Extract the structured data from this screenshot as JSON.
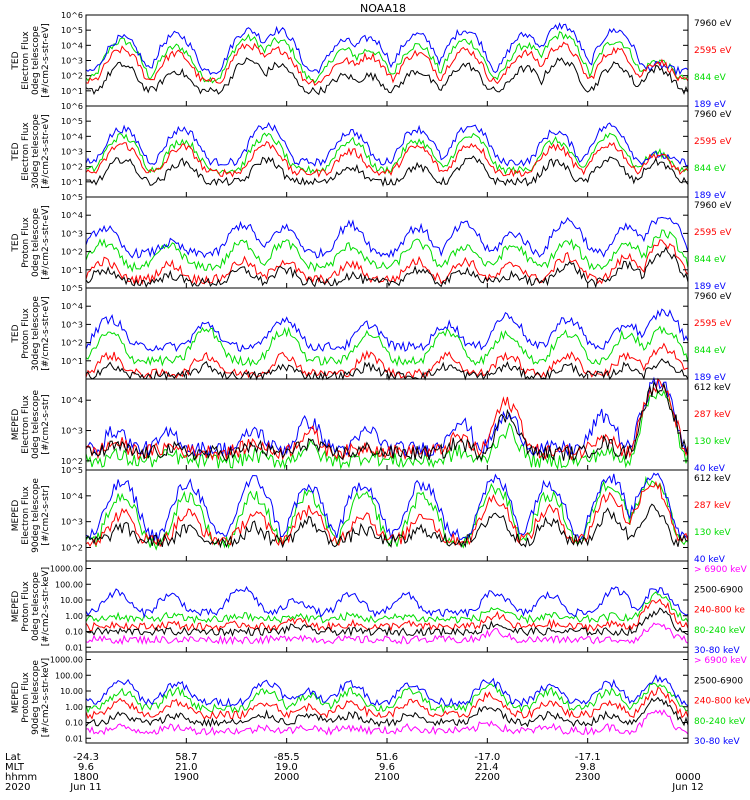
{
  "title": "NOAA18",
  "colors": {
    "blue": "#0000ff",
    "red": "#ff0000",
    "green": "#00dd00",
    "black": "#000000",
    "magenta": "#ff00ff"
  },
  "chart_data": [
    {
      "type": "line",
      "ylabel": [
        "TED",
        "Electron Flux",
        "0deg telescope",
        "[#/cm2-s-str-eV]"
      ],
      "yticks": [
        "10^1",
        "10^2",
        "10^3",
        "10^4",
        "10^5",
        "10^6"
      ],
      "legend": [
        {
          "text": "7960 eV",
          "color": "black"
        },
        {
          "text": "2595 eV",
          "color": "red"
        },
        {
          "text": "844 eV",
          "color": "green"
        },
        {
          "text": "189 eV",
          "color": "blue"
        }
      ],
      "log_scale": true,
      "ylim": [
        1,
        1000000
      ],
      "baseline": {
        "blue": 200,
        "green": 60,
        "red": 40,
        "black": 10
      },
      "peaks": [
        {
          "x": 0.06,
          "blue": 30000,
          "green": 20000,
          "red": 5000,
          "black": 500
        },
        {
          "x": 0.15,
          "blue": 50000,
          "green": 8000,
          "red": 3000,
          "black": 200
        },
        {
          "x": 0.27,
          "blue": 100000,
          "green": 30000,
          "red": 10000,
          "black": 1000
        },
        {
          "x": 0.32,
          "blue": 100000,
          "green": 20000,
          "red": 5000,
          "black": 500
        },
        {
          "x": 0.43,
          "blue": 20000,
          "green": 5000,
          "red": 1000,
          "black": 100
        },
        {
          "x": 0.47,
          "blue": 30000,
          "green": 5000,
          "red": 2000,
          "black": 100
        },
        {
          "x": 0.55,
          "blue": 50000,
          "green": 10000,
          "red": 3000,
          "black": 200
        },
        {
          "x": 0.63,
          "blue": 100000,
          "green": 20000,
          "red": 5000,
          "black": 500
        },
        {
          "x": 0.73,
          "blue": 50000,
          "green": 10000,
          "red": 3000,
          "black": 300
        },
        {
          "x": 0.79,
          "blue": 200000,
          "green": 50000,
          "red": 10000,
          "black": 1000
        },
        {
          "x": 0.88,
          "blue": 100000,
          "green": 20000,
          "red": 5000,
          "black": 500
        },
        {
          "x": 0.95,
          "blue": 500,
          "green": 1000,
          "red": 800,
          "black": 300
        }
      ]
    },
    {
      "type": "line",
      "ylabel": [
        "TED",
        "Electron Flux",
        "30deg telescope",
        "[#/cm2-s-str-eV]"
      ],
      "yticks": [
        "10^1",
        "10^2",
        "10^3",
        "10^4",
        "10^5",
        "10^6"
      ],
      "legend": [
        {
          "text": "7960 eV",
          "color": "black"
        },
        {
          "text": "2595 eV",
          "color": "red"
        },
        {
          "text": "844 eV",
          "color": "green"
        },
        {
          "text": "189 eV",
          "color": "blue"
        }
      ],
      "log_scale": true,
      "ylim": [
        1,
        1000000
      ],
      "baseline": {
        "blue": 200,
        "green": 60,
        "red": 40,
        "black": 10
      },
      "peaks": [
        {
          "x": 0.06,
          "blue": 30000,
          "green": 10000,
          "red": 3000,
          "black": 300
        },
        {
          "x": 0.16,
          "blue": 30000,
          "green": 5000,
          "red": 2000,
          "black": 200
        },
        {
          "x": 0.3,
          "blue": 50000,
          "green": 10000,
          "red": 3000,
          "black": 300
        },
        {
          "x": 0.44,
          "blue": 20000,
          "green": 5000,
          "red": 1000,
          "black": 100
        },
        {
          "x": 0.55,
          "blue": 30000,
          "green": 5000,
          "red": 2000,
          "black": 100
        },
        {
          "x": 0.64,
          "blue": 50000,
          "green": 10000,
          "red": 3000,
          "black": 300
        },
        {
          "x": 0.78,
          "blue": 20000,
          "green": 5000,
          "red": 2000,
          "black": 200
        },
        {
          "x": 0.87,
          "blue": 50000,
          "green": 10000,
          "red": 3000,
          "black": 300
        },
        {
          "x": 0.95,
          "blue": 600,
          "green": 800,
          "red": 600,
          "black": 200
        }
      ]
    },
    {
      "type": "line",
      "ylabel": [
        "TED",
        "Proton Flux",
        "0deg telescope",
        "[#/cm2-s-str-eV]"
      ],
      "yticks": [
        "10^1",
        "10^2",
        "10^3",
        "10^4",
        "10^5"
      ],
      "legend": [
        {
          "text": "7960 eV",
          "color": "black"
        },
        {
          "text": "2595 eV",
          "color": "red"
        },
        {
          "text": "844 eV",
          "color": "green"
        },
        {
          "text": "189 eV",
          "color": "blue"
        }
      ],
      "log_scale": true,
      "ylim": [
        1,
        100000
      ],
      "baseline": {
        "blue": 80,
        "green": 15,
        "red": 3,
        "black": 2
      },
      "peaks": [
        {
          "x": 0.03,
          "blue": 2000,
          "green": 300,
          "red": 30,
          "black": 10
        },
        {
          "x": 0.14,
          "blue": 300,
          "green": 200,
          "red": 20,
          "black": 5
        },
        {
          "x": 0.26,
          "blue": 3000,
          "green": 300,
          "red": 30,
          "black": 10
        },
        {
          "x": 0.33,
          "blue": 2000,
          "green": 300,
          "red": 30,
          "black": 10
        },
        {
          "x": 0.44,
          "blue": 3000,
          "green": 200,
          "red": 20,
          "black": 5
        },
        {
          "x": 0.55,
          "blue": 2000,
          "green": 300,
          "red": 30,
          "black": 10
        },
        {
          "x": 0.63,
          "blue": 3000,
          "green": 200,
          "red": 30,
          "black": 10
        },
        {
          "x": 0.71,
          "blue": 1000,
          "green": 200,
          "red": 20,
          "black": 5
        },
        {
          "x": 0.8,
          "blue": 5000,
          "green": 300,
          "red": 50,
          "black": 20
        },
        {
          "x": 0.9,
          "blue": 2000,
          "green": 300,
          "red": 50,
          "black": 20
        },
        {
          "x": 0.96,
          "blue": 10000,
          "green": 1000,
          "red": 300,
          "black": 100
        }
      ]
    },
    {
      "type": "line",
      "ylabel": [
        "TED",
        "Proton Flux",
        "30deg telescope",
        "[#/cm2-s-str-eV]"
      ],
      "yticks": [
        "10^1",
        "10^2",
        "10^3",
        "10^4",
        "10^5"
      ],
      "legend": [
        {
          "text": "7960 eV",
          "color": "black"
        },
        {
          "text": "2595 eV",
          "color": "red"
        },
        {
          "text": "844 eV",
          "color": "green"
        },
        {
          "text": "189 eV",
          "color": "blue"
        }
      ],
      "log_scale": true,
      "ylim": [
        1,
        100000
      ],
      "baseline": {
        "blue": 60,
        "green": 10,
        "red": 2,
        "black": 1.5
      },
      "peaks": [
        {
          "x": 0.04,
          "blue": 2000,
          "green": 300,
          "red": 20,
          "black": 5
        },
        {
          "x": 0.2,
          "blue": 1000,
          "green": 500,
          "red": 20,
          "black": 5
        },
        {
          "x": 0.33,
          "blue": 2000,
          "green": 400,
          "red": 20,
          "black": 5
        },
        {
          "x": 0.47,
          "blue": 1000,
          "green": 300,
          "red": 20,
          "black": 5
        },
        {
          "x": 0.6,
          "blue": 1000,
          "green": 400,
          "red": 20,
          "black": 5
        },
        {
          "x": 0.7,
          "blue": 3000,
          "green": 300,
          "red": 20,
          "black": 5
        },
        {
          "x": 0.8,
          "blue": 2000,
          "green": 300,
          "red": 20,
          "black": 5
        },
        {
          "x": 0.9,
          "blue": 1000,
          "green": 300,
          "red": 20,
          "black": 5
        },
        {
          "x": 0.96,
          "blue": 5000,
          "green": 500,
          "red": 50,
          "black": 10
        }
      ]
    },
    {
      "type": "line",
      "ylabel": [
        "MEPED",
        "Electron Flux",
        "0deg telescope",
        "[#/cm2-s-str]"
      ],
      "yticks": [
        "10^2",
        "10^3",
        "10^4"
      ],
      "legend": [
        {
          "text": "612 keV",
          "color": "black"
        },
        {
          "text": "287 keV",
          "color": "red"
        },
        {
          "text": "130 keV",
          "color": "green"
        },
        {
          "text": "40 keV",
          "color": "blue"
        }
      ],
      "log_scale": true,
      "ylim": [
        50,
        50000
      ],
      "baseline": {
        "blue": 250,
        "green": 100,
        "red": 200,
        "black": 180
      },
      "peaks": [
        {
          "x": 0.05,
          "blue": 1000,
          "green": 150,
          "red": 400,
          "black": 300
        },
        {
          "x": 0.14,
          "blue": 800,
          "green": 150,
          "red": 300,
          "black": 250
        },
        {
          "x": 0.28,
          "blue": 1000,
          "green": 150,
          "red": 400,
          "black": 300
        },
        {
          "x": 0.37,
          "blue": 2000,
          "green": 300,
          "red": 900,
          "black": 400
        },
        {
          "x": 0.47,
          "blue": 1000,
          "green": 150,
          "red": 300,
          "black": 250
        },
        {
          "x": 0.62,
          "blue": 2000,
          "green": 200,
          "red": 600,
          "black": 400
        },
        {
          "x": 0.7,
          "blue": 3000,
          "green": 1000,
          "red": 8000,
          "black": 3000
        },
        {
          "x": 0.86,
          "blue": 3000,
          "green": 200,
          "red": 800,
          "black": 400
        },
        {
          "x": 0.95,
          "blue": 40000,
          "green": 20000,
          "red": 30000,
          "black": 30000
        }
      ]
    },
    {
      "type": "line",
      "ylabel": [
        "MEPED",
        "Electron Flux",
        "90deg telescope",
        "[#/cm2-s-str]"
      ],
      "yticks": [
        "10^2",
        "10^3",
        "10^4",
        "10^5"
      ],
      "legend": [
        {
          "text": "612 keV",
          "color": "black"
        },
        {
          "text": "287 keV",
          "color": "red"
        },
        {
          "text": "130 keV",
          "color": "green"
        },
        {
          "text": "40 keV",
          "color": "blue"
        }
      ],
      "log_scale": true,
      "ylim": [
        30,
        100000
      ],
      "baseline": {
        "blue": 300,
        "green": 150,
        "red": 200,
        "black": 180
      },
      "peaks": [
        {
          "x": 0.06,
          "blue": 30000,
          "green": 10000,
          "red": 2000,
          "black": 600
        },
        {
          "x": 0.17,
          "blue": 30000,
          "green": 10000,
          "red": 2000,
          "black": 500
        },
        {
          "x": 0.28,
          "blue": 40000,
          "green": 10000,
          "red": 2000,
          "black": 600
        },
        {
          "x": 0.37,
          "blue": 20000,
          "green": 10000,
          "red": 3000,
          "black": 1000
        },
        {
          "x": 0.46,
          "blue": 30000,
          "green": 10000,
          "red": 2000,
          "black": 500
        },
        {
          "x": 0.56,
          "blue": 30000,
          "green": 10000,
          "red": 2000,
          "black": 500
        },
        {
          "x": 0.68,
          "blue": 40000,
          "green": 20000,
          "red": 8000,
          "black": 2000
        },
        {
          "x": 0.77,
          "blue": 30000,
          "green": 10000,
          "red": 3000,
          "black": 1000
        },
        {
          "x": 0.87,
          "blue": 50000,
          "green": 30000,
          "red": 10000,
          "black": 2000
        },
        {
          "x": 0.94,
          "blue": 60000,
          "green": 40000,
          "red": 30000,
          "black": 3000
        }
      ]
    },
    {
      "type": "line",
      "ylabel": [
        "MEPED",
        "Proton Flux",
        "0deg telescope",
        "[#/cm2-s-str-keV]"
      ],
      "yticks": [
        "0.01",
        "0.10",
        "1.00",
        "10.00",
        "100.00",
        "1000.00"
      ],
      "legend": [
        {
          "text": "> 6900 keV",
          "color": "magenta"
        },
        {
          "text": "2500-6900",
          "color": "black"
        },
        {
          "text": "240-800 ke",
          "color": "red"
        },
        {
          "text": "80-240 keV",
          "color": "green"
        },
        {
          "text": "30-80 keV",
          "color": "blue"
        }
      ],
      "log_scale": true,
      "ylim": [
        0.005,
        3000
      ],
      "baseline": {
        "blue": 1.5,
        "green": 0.6,
        "red": 0.2,
        "black": 0.1,
        "magenta": 0.03
      },
      "peaks": [
        {
          "x": 0.05,
          "blue": 30,
          "green": 1,
          "red": 0.3,
          "black": 0.1,
          "magenta": 0.03
        },
        {
          "x": 0.14,
          "blue": 20,
          "green": 1,
          "red": 0.3,
          "black": 0.1,
          "magenta": 0.03
        },
        {
          "x": 0.26,
          "blue": 50,
          "green": 1,
          "red": 0.3,
          "black": 0.1,
          "magenta": 0.03
        },
        {
          "x": 0.35,
          "blue": 10,
          "green": 1,
          "red": 0.5,
          "black": 0.2,
          "magenta": 0.05
        },
        {
          "x": 0.44,
          "blue": 20,
          "green": 1,
          "red": 0.3,
          "black": 0.1,
          "magenta": 0.03
        },
        {
          "x": 0.53,
          "blue": 20,
          "green": 1,
          "red": 0.3,
          "black": 0.1,
          "magenta": 0.03
        },
        {
          "x": 0.68,
          "blue": 30,
          "green": 3,
          "red": 1,
          "black": 0.3,
          "magenta": 0.1
        },
        {
          "x": 0.77,
          "blue": 20,
          "green": 1,
          "red": 0.3,
          "black": 0.1,
          "magenta": 0.03
        },
        {
          "x": 0.88,
          "blue": 40,
          "green": 1,
          "red": 0.3,
          "black": 0.1,
          "magenta": 0.03
        },
        {
          "x": 0.95,
          "blue": 50,
          "green": 20,
          "red": 8,
          "black": 2,
          "magenta": 0.3
        }
      ]
    },
    {
      "type": "line",
      "ylabel": [
        "MEPED",
        "Proton Flux",
        "90deg telescope",
        "[#/cm2-s-str-keV]"
      ],
      "yticks": [
        "0.01",
        "0.10",
        "1.00",
        "10.00",
        "100.00",
        "1000.00"
      ],
      "legend": [
        {
          "text": "> 6900 keV",
          "color": "magenta"
        },
        {
          "text": "2500-6900",
          "color": "black"
        },
        {
          "text": "240-800 keV",
          "color": "red"
        },
        {
          "text": "80-240 keV",
          "color": "green"
        },
        {
          "text": "30-80 keV",
          "color": "blue"
        }
      ],
      "log_scale": true,
      "ylim": [
        0.005,
        3000
      ],
      "baseline": {
        "blue": 2,
        "green": 0.8,
        "red": 0.3,
        "black": 0.1,
        "magenta": 0.03
      },
      "peaks": [
        {
          "x": 0.06,
          "blue": 40,
          "green": 10,
          "red": 2,
          "black": 0.3,
          "magenta": 0.05
        },
        {
          "x": 0.15,
          "blue": 30,
          "green": 10,
          "red": 2,
          "black": 0.3,
          "magenta": 0.05
        },
        {
          "x": 0.3,
          "blue": 40,
          "green": 10,
          "red": 2,
          "black": 0.3,
          "magenta": 0.05
        },
        {
          "x": 0.37,
          "blue": 10,
          "green": 5,
          "red": 1,
          "black": 0.3,
          "magenta": 0.05
        },
        {
          "x": 0.44,
          "blue": 30,
          "green": 10,
          "red": 2,
          "black": 0.3,
          "magenta": 0.05
        },
        {
          "x": 0.54,
          "blue": 30,
          "green": 10,
          "red": 2,
          "black": 0.3,
          "magenta": 0.05
        },
        {
          "x": 0.67,
          "blue": 40,
          "green": 20,
          "red": 5,
          "black": 1,
          "magenta": 0.1
        },
        {
          "x": 0.77,
          "blue": 20,
          "green": 10,
          "red": 2,
          "black": 0.3,
          "magenta": 0.05
        },
        {
          "x": 0.87,
          "blue": 30,
          "green": 10,
          "red": 2,
          "black": 0.3,
          "magenta": 0.05
        },
        {
          "x": 0.95,
          "blue": 60,
          "green": 30,
          "red": 10,
          "black": 3,
          "magenta": 0.5
        }
      ]
    }
  ],
  "xaxis": {
    "row_labels": [
      "Lat",
      "MLT",
      "hhmm",
      "2020"
    ],
    "columns": [
      {
        "lat": "-24.3",
        "mlt": "9.6",
        "hhmm": "1800",
        "date": "Jun 11"
      },
      {
        "lat": "58.7",
        "mlt": "21.0",
        "hhmm": "1900",
        "date": ""
      },
      {
        "lat": "-85.5",
        "mlt": "19.0",
        "hhmm": "2000",
        "date": ""
      },
      {
        "lat": "51.6",
        "mlt": "9.6",
        "hhmm": "2100",
        "date": ""
      },
      {
        "lat": "-17.0",
        "mlt": "21.4",
        "hhmm": "2200",
        "date": ""
      },
      {
        "lat": "-17.1",
        "mlt": "9.8",
        "hhmm": "2300",
        "date": ""
      },
      {
        "lat": "",
        "mlt": "",
        "hhmm": "0000",
        "date": "Jun 12"
      }
    ]
  }
}
